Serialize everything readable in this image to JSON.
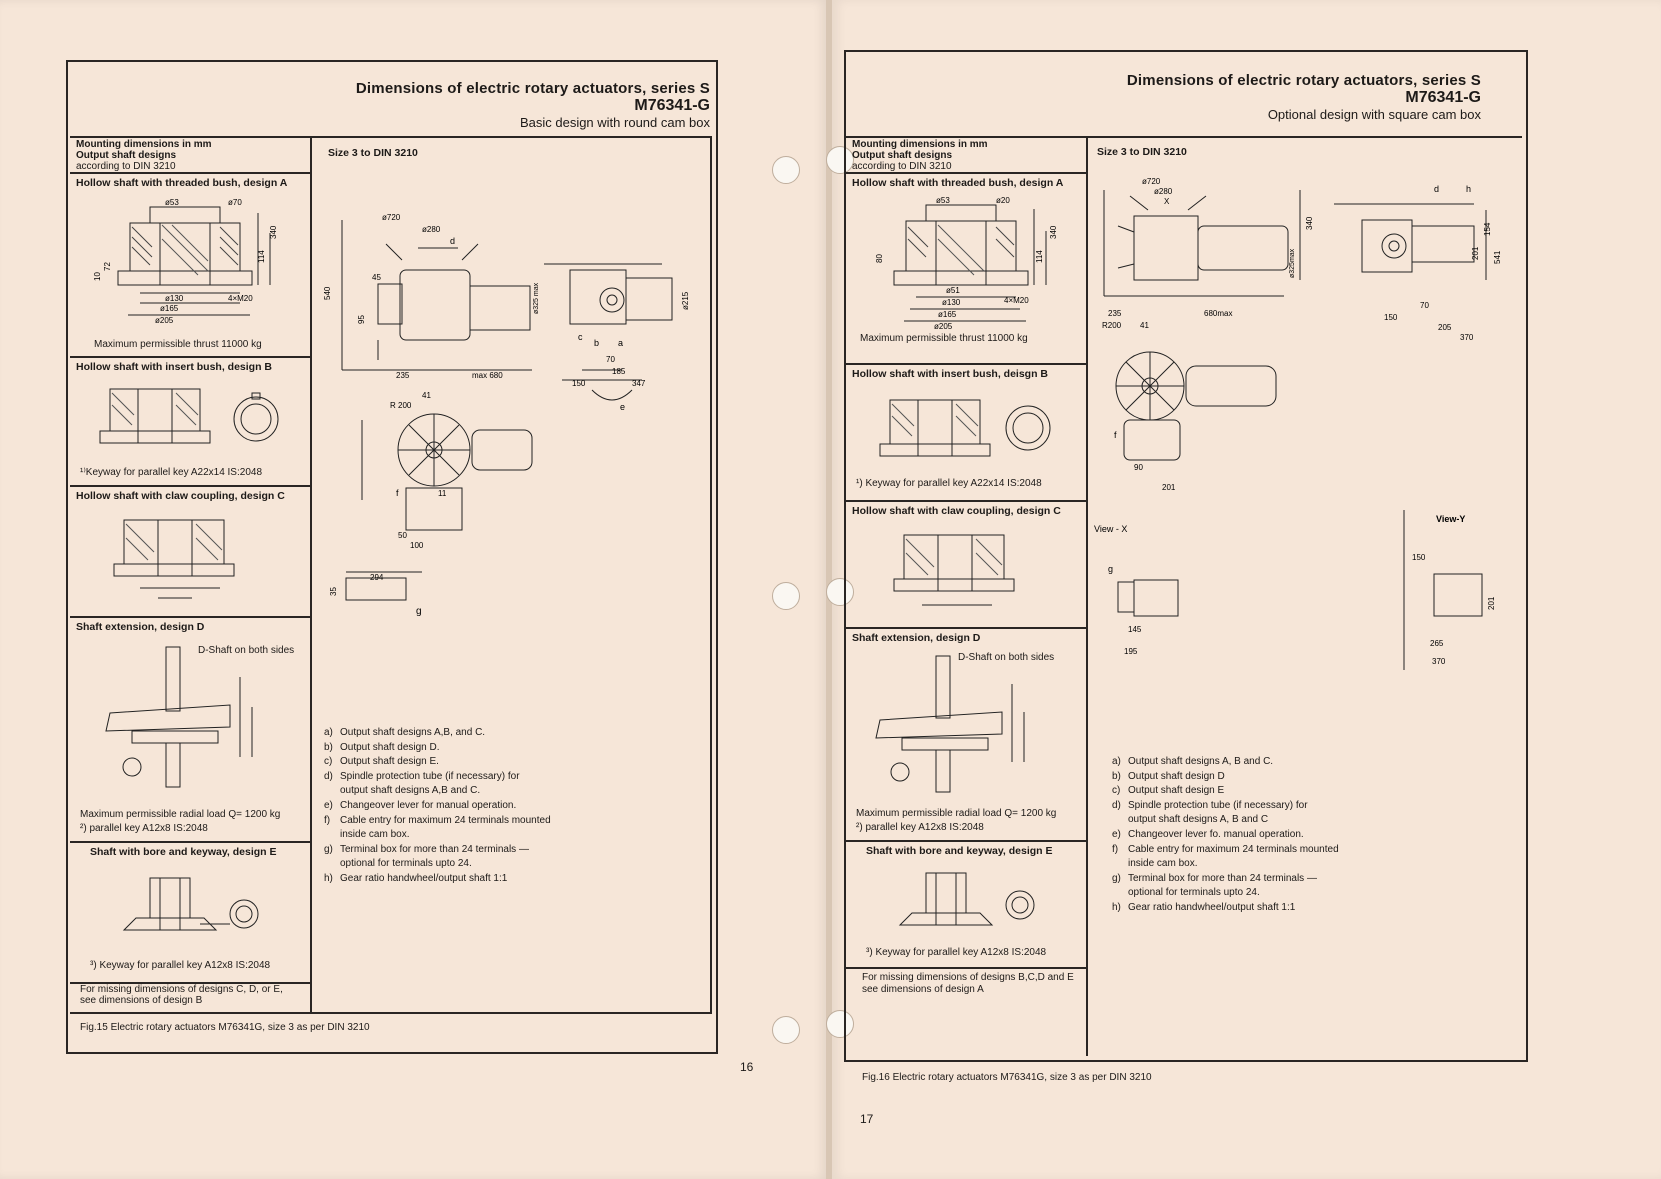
{
  "left": {
    "title_line1": "Dimensions of electric rotary actuators, series S",
    "title_line2": "M76341-G",
    "title_line3": "Basic design with round cam box",
    "mount_head": {
      "l1": "Mounting dimensions in mm",
      "l2": "Output shaft designs",
      "l3": "according to DIN 3210"
    },
    "size_label": "Size 3 to DIN 3210",
    "sections": {
      "a_title": "Hollow shaft with threaded bush, design A",
      "a_note": "Maximum permissible thrust 11000 kg",
      "b_title": "Hollow shaft with insert bush, design B",
      "b_note": "¹⁾Keyway for parallel key A22x14   IS:2048",
      "c_title": "Hollow shaft with claw coupling, design C",
      "d_title": "Shaft extension, design D",
      "d_label": "D-Shaft on both sides",
      "d_note1": "Maximum permissible radial load Q= 1200 kg",
      "d_note2": "²) parallel key A12x8 IS:2048",
      "e_title": "Shaft with bore and keyway, design E",
      "e_note": "³) Keyway for parallel key A12x8 IS:2048",
      "missing": "For missing dimensions of designs C, D, or E, see dimensions of design B"
    },
    "dims": {
      "a_53": "ø53",
      "a_70": "ø70",
      "a_130": "ø130",
      "a_165": "ø165",
      "a_205": "ø205",
      "a_m20": "4×M20",
      "a_340": "340",
      "a_114": "114",
      "a_72": "72",
      "a_10": "10",
      "d_720": "ø720",
      "d_280": "ø280",
      "d_235": "235",
      "d_max680": "max 680",
      "d_540": "540",
      "d_95": "95",
      "d_45": "45",
      "d_325": "ø325 max",
      "d_70": "70",
      "d_150": "150",
      "d_185": "185",
      "d_347": "347",
      "d_215": "ø215",
      "d_r200": "R 200",
      "d_41": "41",
      "d_11": "11",
      "d_50": "50",
      "d_100": "100",
      "d_294": "294",
      "d_35": "35",
      "d_g": "g",
      "d_a": "a",
      "d_b": "b",
      "d_c": "c",
      "d_d": "d",
      "d_e": "e",
      "d_f": "f"
    },
    "legend": [
      {
        "k": "a)",
        "t": "Output shaft designs A,B, and C."
      },
      {
        "k": "b)",
        "t": "Output shaft design D."
      },
      {
        "k": "c)",
        "t": "Output shaft design E."
      },
      {
        "k": "d)",
        "t": "Spindle protection tube (if necessary) for"
      },
      {
        "k": "",
        "t": "output shaft designs A,B and C."
      },
      {
        "k": "e)",
        "t": "Changeover lever for manual operation."
      },
      {
        "k": "f)",
        "t": "Cable entry for maximum 24 terminals mounted"
      },
      {
        "k": "",
        "t": "inside cam box."
      },
      {
        "k": "g)",
        "t": "Terminal box for more than 24 terminals —"
      },
      {
        "k": "",
        "t": "optional for terminals upto 24."
      },
      {
        "k": "h)",
        "t": "Gear ratio handwheel/output shaft 1:1"
      }
    ],
    "caption": "Fig.15 Electric rotary actuators M76341G, size 3 as per DIN 3210",
    "page": "16"
  },
  "right": {
    "title_line1": "Dimensions of electric rotary actuators, series S",
    "title_line2": "M76341-G",
    "title_line3": "Optional design with square cam box",
    "mount_head": {
      "l1": "Mounting dimensions in mm",
      "l2": "Output shaft designs",
      "l3": "according to DIN 3210"
    },
    "size_label": "Size 3 to DIN 3210",
    "sections": {
      "a_title": "Hollow shaft with threaded bush, design A",
      "a_note": "Maximum permissible thrust 11000 kg",
      "b_title": "Hollow shaft with insert bush, deisgn B",
      "b_note": "¹) Keyway for parallel key A22x14 IS:2048",
      "c_title": "Hollow shaft with claw coupling, design C",
      "d_title": "Shaft extension, design D",
      "d_label": "D-Shaft on both sides",
      "d_note1": "Maximum permissible radial load Q= 1200 kg",
      "d_note2": "²) parallel key A12x8 IS:2048",
      "e_title": "Shaft with bore and keyway, design E",
      "e_note": "³) Keyway for parallel key A12x8 IS:2048",
      "missing": "For missing dimensions of designs B,C,D and E see dimensions of design A"
    },
    "dims": {
      "a_53": "ø53",
      "a_20": "ø20",
      "a_51": "ø51",
      "a_130": "ø130",
      "a_165": "ø165",
      "a_205": "ø205",
      "a_m20": "4×M20",
      "a_340": "340",
      "a_114": "114",
      "a_80": "80",
      "d_720": "ø720",
      "d_280": "ø280",
      "d_235": "235",
      "d_680": "680max",
      "d_200": "R200",
      "d_41": "41",
      "d_325": "ø325max",
      "d_340": "340",
      "d_70": "70",
      "d_150": "150",
      "d_205": "205",
      "d_370": "370",
      "d_201": "201",
      "d_154": "154",
      "d_541": "541",
      "d_90": "90",
      "d_201b": "201",
      "view_x": "View - X",
      "view_y": "View-Y",
      "d_145": "145",
      "d_195": "195",
      "d_265": "265",
      "d_370b": "370",
      "d_150b": "150",
      "d_201c": "201",
      "d_g": "g",
      "d_f": "f",
      "d_h": "h",
      "d_d": "d",
      "d_x": "X"
    },
    "legend": [
      {
        "k": "a)",
        "t": "Output shaft designs A, B and C."
      },
      {
        "k": "b)",
        "t": "Output shaft design D"
      },
      {
        "k": "c)",
        "t": "Output shaft design E"
      },
      {
        "k": "d)",
        "t": "Spindle protection tube (if necessary) for"
      },
      {
        "k": "",
        "t": "output shaft designs A, B and C"
      },
      {
        "k": "e)",
        "t": "Changeover lever fo. manual operation."
      },
      {
        "k": "f)",
        "t": "Cable entry for maximum 24 terminals mounted"
      },
      {
        "k": "",
        "t": "inside cam box."
      },
      {
        "k": "g)",
        "t": "Terminal box for more than 24 terminals —"
      },
      {
        "k": "",
        "t": "optional for terminals upto 24."
      },
      {
        "k": "h)",
        "t": "Gear ratio handwheel/output shaft 1:1"
      }
    ],
    "caption": "Fig.16 Electric rotary actuators M76341G, size 3 as per DIN 3210",
    "page": "17"
  }
}
